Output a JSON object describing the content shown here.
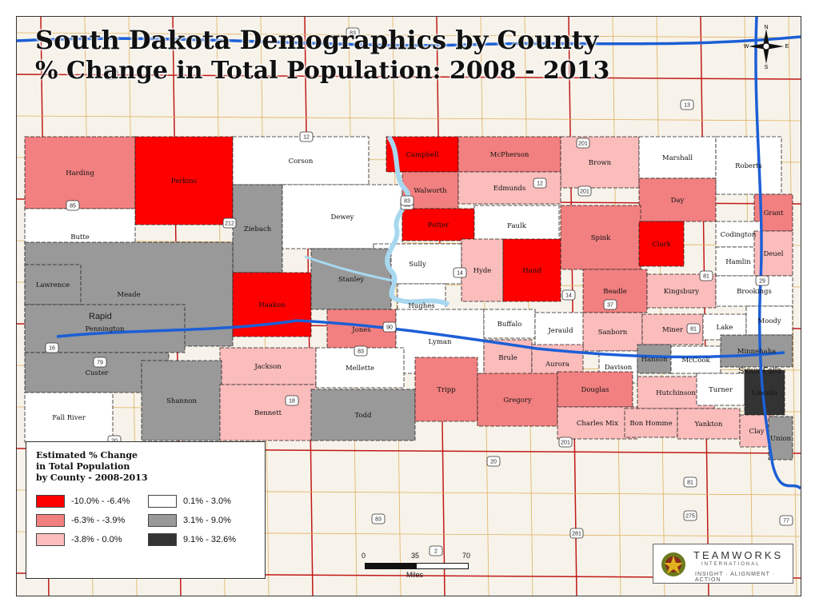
{
  "title": {
    "line1": "South Dakota Demographics by County",
    "line2": "% Change in Total Population: 2008 - 2013"
  },
  "colors": {
    "class1": "#ff0000",
    "class2": "#f28080",
    "class3": "#fbbcbc",
    "class4": "#ffffff",
    "class5": "#999999",
    "class6": "#333333",
    "interstate": "#1c5fd6",
    "highway": "#b01010",
    "river": "#a8d8f0"
  },
  "legend": {
    "title_line1": "Estimated % Change",
    "title_line2": "in Total Population",
    "title_line3": "by County - 2008-2013",
    "items": [
      {
        "label": "-10.0% - -6.4%",
        "color": "#ff0000"
      },
      {
        "label": "0.1% - 3.0%",
        "color": "#ffffff"
      },
      {
        "label": "-6.3% - -3.9%",
        "color": "#f28080"
      },
      {
        "label": "3.1% - 9.0%",
        "color": "#999999"
      },
      {
        "label": "-3.8% - 0.0%",
        "color": "#fbbcbc"
      },
      {
        "label": "9.1% - 32.6%",
        "color": "#333333"
      }
    ]
  },
  "counties": [
    {
      "name": "Harding",
      "class": 2
    },
    {
      "name": "Perkins",
      "class": 1
    },
    {
      "name": "Corson",
      "class": 4
    },
    {
      "name": "Campbell",
      "class": 1
    },
    {
      "name": "McPherson",
      "class": 2
    },
    {
      "name": "Brown",
      "class": 3
    },
    {
      "name": "Marshall",
      "class": 4
    },
    {
      "name": "Roberts",
      "class": 4
    },
    {
      "name": "Butte",
      "class": 4
    },
    {
      "name": "Ziebach",
      "class": 5
    },
    {
      "name": "Dewey",
      "class": 4
    },
    {
      "name": "Walworth",
      "class": 2
    },
    {
      "name": "Edmunds",
      "class": 3
    },
    {
      "name": "Day",
      "class": 2
    },
    {
      "name": "Grant",
      "class": 2
    },
    {
      "name": "Potter",
      "class": 1
    },
    {
      "name": "Faulk",
      "class": 4
    },
    {
      "name": "Spink",
      "class": 2
    },
    {
      "name": "Clark",
      "class": 1
    },
    {
      "name": "Codington",
      "class": 4
    },
    {
      "name": "Meade",
      "class": 5
    },
    {
      "name": "Sully",
      "class": 4
    },
    {
      "name": "Hyde",
      "class": 3
    },
    {
      "name": "Hand",
      "class": 1
    },
    {
      "name": "Hamlin",
      "class": 4
    },
    {
      "name": "Deuel",
      "class": 3
    },
    {
      "name": "Lawrence",
      "class": 5
    },
    {
      "name": "Haakon",
      "class": 1
    },
    {
      "name": "Stanley",
      "class": 5
    },
    {
      "name": "Hughes",
      "class": 4
    },
    {
      "name": "Beadle",
      "class": 2
    },
    {
      "name": "Kingsbury",
      "class": 3
    },
    {
      "name": "Brookings",
      "class": 4
    },
    {
      "name": "Pennington",
      "class": 5
    },
    {
      "name": "Jones",
      "class": 2
    },
    {
      "name": "Lyman",
      "class": 4
    },
    {
      "name": "Buffalo",
      "class": 4
    },
    {
      "name": "Jerauld",
      "class": 4
    },
    {
      "name": "Sanborn",
      "class": 3
    },
    {
      "name": "Miner",
      "class": 3
    },
    {
      "name": "Lake",
      "class": 4
    },
    {
      "name": "Moody",
      "class": 4
    },
    {
      "name": "Custer",
      "class": 5
    },
    {
      "name": "Jackson",
      "class": 3
    },
    {
      "name": "Mellette",
      "class": 4
    },
    {
      "name": "Brule",
      "class": 3
    },
    {
      "name": "Aurora",
      "class": 3
    },
    {
      "name": "Davison",
      "class": 4
    },
    {
      "name": "Hanson",
      "class": 5
    },
    {
      "name": "McCook",
      "class": 4
    },
    {
      "name": "Minnehaha",
      "class": 5
    },
    {
      "name": "Fall River",
      "class": 4
    },
    {
      "name": "Shannon",
      "class": 5
    },
    {
      "name": "Bennett",
      "class": 3
    },
    {
      "name": "Todd",
      "class": 5
    },
    {
      "name": "Tripp",
      "class": 2
    },
    {
      "name": "Gregory",
      "class": 2
    },
    {
      "name": "Douglas",
      "class": 2
    },
    {
      "name": "Charles Mix",
      "class": 3
    },
    {
      "name": "Hutchinson",
      "class": 3
    },
    {
      "name": "Turner",
      "class": 4
    },
    {
      "name": "Lincoln",
      "class": 6
    },
    {
      "name": "Bon Homme",
      "class": 3
    },
    {
      "name": "Yankton",
      "class": 3
    },
    {
      "name": "Clay",
      "class": 3
    },
    {
      "name": "Union",
      "class": 5
    }
  ],
  "cities": [
    {
      "name": "Sioux Falls"
    },
    {
      "name": "Rapid"
    }
  ],
  "highway_shields": [
    "83",
    "85",
    "12",
    "212",
    "83",
    "14",
    "201",
    "81",
    "29",
    "90",
    "16",
    "79",
    "18",
    "83",
    "37",
    "81",
    "20",
    "20",
    "201",
    "81",
    "83",
    "281",
    "275",
    "77",
    "2",
    "14",
    "83",
    "12",
    "201",
    "13",
    "85"
  ],
  "scale": {
    "ticks": [
      "0",
      "35",
      "70"
    ],
    "unit": "Miles"
  },
  "compass": {
    "n": "N",
    "s": "S",
    "e": "E",
    "w": "W"
  },
  "logo": {
    "name": "TEAMWORKS",
    "subtitle": "INTERNATIONAL",
    "tagline": "INSIGHT · ALIGNMENT · ACTION"
  }
}
